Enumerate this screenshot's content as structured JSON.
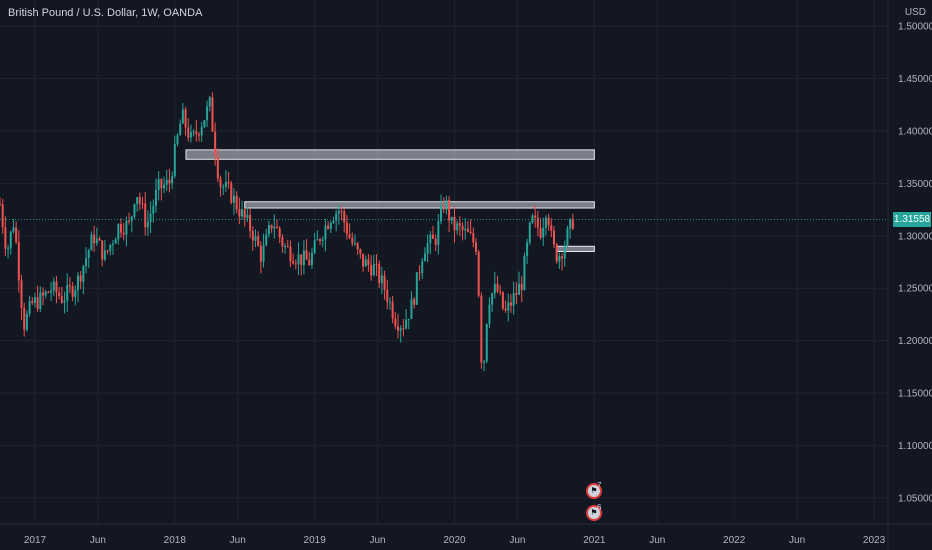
{
  "header": {
    "title": "British Pound / U.S. Dollar, 1W, OANDA",
    "currency": "USD"
  },
  "colors": {
    "background": "#131722",
    "up": "#26a69a",
    "down": "#ef5350",
    "grid": "#1f2430",
    "axis_text": "#b2b5be",
    "zone_fill": "#d1d4dc",
    "zone_stroke": "#e6e8ee"
  },
  "last_price": {
    "label": "1.31558",
    "value": 1.31558
  },
  "events": [
    {
      "count": "7",
      "icon": "economic-event-flag-icon"
    },
    {
      "count": "6",
      "icon": "economic-event-flag-icon"
    }
  ],
  "chart_data": {
    "type": "candlestick",
    "title": "British Pound / U.S. Dollar, 1W, OANDA",
    "ylim": [
      1.025,
      1.525
    ],
    "y_ticks": [
      1.05,
      1.1,
      1.15,
      1.2,
      1.25,
      1.3,
      1.35,
      1.4,
      1.45,
      1.5
    ],
    "y_tick_labels": [
      "1.05000",
      "1.10000",
      "1.15000",
      "1.20000",
      "1.25000",
      "1.30000",
      "1.35000",
      "1.40000",
      "1.45000",
      "1.50000"
    ],
    "x_ticks": [
      {
        "t": 2017.0,
        "label": "2017"
      },
      {
        "t": 2017.45,
        "label": "Jun"
      },
      {
        "t": 2018.0,
        "label": "2018"
      },
      {
        "t": 2018.45,
        "label": "Jun"
      },
      {
        "t": 2019.0,
        "label": "2019"
      },
      {
        "t": 2019.45,
        "label": "Jun"
      },
      {
        "t": 2020.0,
        "label": "2020"
      },
      {
        "t": 2020.45,
        "label": "Jun"
      },
      {
        "t": 2021.0,
        "label": "2021"
      },
      {
        "t": 2021.45,
        "label": "Jun"
      },
      {
        "t": 2022.0,
        "label": "2022"
      },
      {
        "t": 2022.45,
        "label": "Jun"
      },
      {
        "t": 2023.0,
        "label": "2023"
      }
    ],
    "xlim": [
      2016.75,
      2023.1
    ],
    "price_path": [
      [
        2016.75,
        1.33
      ],
      [
        2016.8,
        1.285
      ],
      [
        2016.85,
        1.315
      ],
      [
        2016.92,
        1.215
      ],
      [
        2016.98,
        1.235
      ],
      [
        2017.05,
        1.24
      ],
      [
        2017.12,
        1.25
      ],
      [
        2017.2,
        1.24
      ],
      [
        2017.3,
        1.255
      ],
      [
        2017.42,
        1.3
      ],
      [
        2017.5,
        1.28
      ],
      [
        2017.6,
        1.31
      ],
      [
        2017.68,
        1.31
      ],
      [
        2017.72,
        1.345
      ],
      [
        2017.8,
        1.31
      ],
      [
        2017.88,
        1.345
      ],
      [
        2017.96,
        1.35
      ],
      [
        2018.05,
        1.415
      ],
      [
        2018.12,
        1.39
      ],
      [
        2018.2,
        1.41
      ],
      [
        2018.25,
        1.425
      ],
      [
        2018.32,
        1.35
      ],
      [
        2018.4,
        1.34
      ],
      [
        2018.48,
        1.32
      ],
      [
        2018.55,
        1.305
      ],
      [
        2018.62,
        1.28
      ],
      [
        2018.7,
        1.315
      ],
      [
        2018.78,
        1.29
      ],
      [
        2018.87,
        1.28
      ],
      [
        2018.96,
        1.275
      ],
      [
        2019.04,
        1.3
      ],
      [
        2019.12,
        1.32
      ],
      [
        2019.18,
        1.325
      ],
      [
        2019.26,
        1.295
      ],
      [
        2019.34,
        1.275
      ],
      [
        2019.42,
        1.27
      ],
      [
        2019.5,
        1.25
      ],
      [
        2019.58,
        1.22
      ],
      [
        2019.63,
        1.215
      ],
      [
        2019.7,
        1.235
      ],
      [
        2019.78,
        1.29
      ],
      [
        2019.86,
        1.295
      ],
      [
        2019.93,
        1.335
      ],
      [
        2019.98,
        1.31
      ],
      [
        2020.05,
        1.305
      ],
      [
        2020.1,
        1.3
      ],
      [
        2020.16,
        1.29
      ],
      [
        2020.2,
        1.16
      ],
      [
        2020.24,
        1.24
      ],
      [
        2020.3,
        1.25
      ],
      [
        2020.36,
        1.225
      ],
      [
        2020.42,
        1.24
      ],
      [
        2020.48,
        1.255
      ],
      [
        2020.55,
        1.315
      ],
      [
        2020.62,
        1.305
      ],
      [
        2020.66,
        1.33
      ],
      [
        2020.7,
        1.29
      ],
      [
        2020.74,
        1.28
      ],
      [
        2020.78,
        1.29
      ],
      [
        2020.82,
        1.305
      ],
      [
        2020.85,
        1.316
      ]
    ],
    "zones": [
      {
        "t0": 2018.08,
        "t1": 2021.0,
        "y0": 1.373,
        "y1": 1.382
      },
      {
        "t0": 2018.5,
        "t1": 2021.0,
        "y0": 1.3265,
        "y1": 1.3325
      },
      {
        "t0": 2020.73,
        "t1": 2021.0,
        "y0": 1.285,
        "y1": 1.29
      }
    ]
  }
}
